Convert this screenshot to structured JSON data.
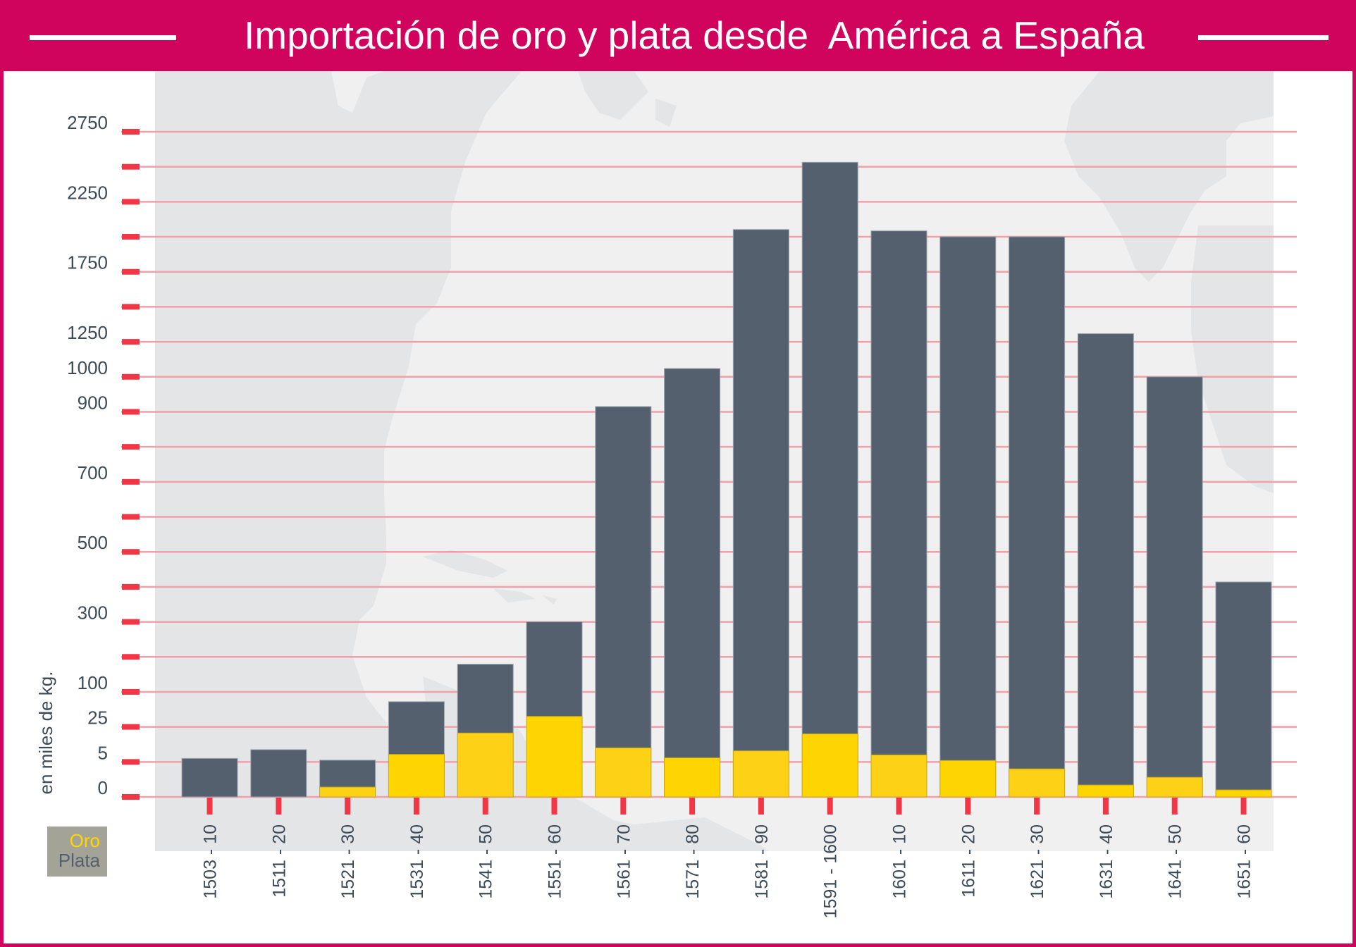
{
  "header": {
    "title": "Importación de oro y plata desde  América a España"
  },
  "colors": {
    "brand": "#d0035d",
    "oro": "#ffd500",
    "oro_alt": "#fcd116",
    "plata": "#54606e",
    "tick": "#f23645",
    "grid": "#f0a0a8",
    "panel": "#f0f0f0",
    "land": "#e4e5e7"
  },
  "legend": {
    "items": [
      {
        "label": "Oro",
        "color": "#ffd500"
      },
      {
        "label": "Plata",
        "color": "#54606e"
      }
    ]
  },
  "chart_data": {
    "type": "bar",
    "stacked": false,
    "overlay": true,
    "title": "Importación de oro y plata desde  América a España",
    "xlabel": "",
    "ylabel": "en miles de kg.",
    "y_scale": "piecewise-linear (non-uniform ticks, equally spaced)",
    "ylim": [
      0,
      2750
    ],
    "y_ticks": [
      0,
      5,
      25,
      100,
      200,
      300,
      400,
      500,
      600,
      700,
      800,
      900,
      1000,
      1250,
      1500,
      1750,
      2000,
      2250,
      2500,
      2750
    ],
    "y_tick_labels": [
      "0",
      "5",
      "25",
      "100",
      "",
      "300",
      "",
      "500",
      "",
      "700",
      "",
      "900",
      "1000",
      "1250",
      "",
      "1750",
      "",
      "2250",
      "",
      "2750"
    ],
    "grid": true,
    "legend_position": "bottom-left",
    "categories": [
      "1503 - 10",
      "1511 - 20",
      "1521 - 30",
      "1531 - 40",
      "1541 - 50",
      "1551 - 60",
      "1561 - 70",
      "1571 - 80",
      "1581 - 90",
      "1591 - 1600",
      "1601 - 10",
      "1611 - 20",
      "1621 - 30",
      "1631 - 40",
      "1641 - 50",
      "1651 - 60"
    ],
    "series": [
      {
        "name": "Plata",
        "color": "#54606e",
        "values": [
          7,
          12,
          6,
          79,
          179,
          300,
          915,
          1059,
          2052,
          2532,
          2042,
          2000,
          2000,
          1308,
          1000,
          414
        ]
      },
      {
        "name": "Oro",
        "color": "#ffd500",
        "values": [
          0,
          0,
          1.4,
          9.3,
          21.5,
          47.5,
          13,
          7.3,
          11.3,
          21,
          9,
          5.8,
          4,
          1.7,
          2.8,
          1
        ]
      }
    ]
  }
}
